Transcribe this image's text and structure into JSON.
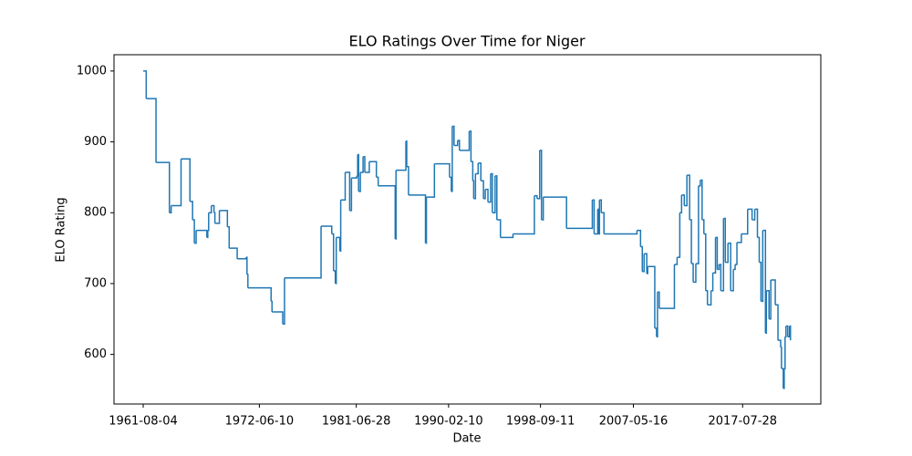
{
  "chart_data": {
    "type": "line",
    "drawstyle": "steps-post",
    "title": "ELO Ratings Over Time for Niger",
    "xlabel": "Date",
    "ylabel": "ELO Rating",
    "color": "#1f77b4",
    "x": [
      "1961-08-04",
      "1961-11-15",
      "1962-10-15",
      "1964-01-15",
      "1964-03-15",
      "1965-02-15",
      "1965-12-15",
      "1966-03-15",
      "1966-05-15",
      "1966-07-15",
      "1967-07-15",
      "1967-08-15",
      "1967-09-15",
      "1967-12-15",
      "1968-03-15",
      "1968-04-15",
      "1968-09-15",
      "1969-06-15",
      "1969-08-15",
      "1970-05-15",
      "1971-03-15",
      "1971-04-15",
      "1971-05-15",
      "1973-07-15",
      "1973-08-15",
      "1974-08-15",
      "1974-10-15",
      "1978-03-15",
      "1979-03-15",
      "1979-05-15",
      "1979-07-15",
      "1979-08-15",
      "1979-12-15",
      "1980-01-15",
      "1980-06-15",
      "1980-11-15",
      "1981-01-15",
      "1981-07-15",
      "1981-08-15",
      "1981-09-15",
      "1981-11-15",
      "1982-02-15",
      "1982-04-15",
      "1982-09-15",
      "1983-05-15",
      "1983-07-15",
      "1985-02-15",
      "1985-03-15",
      "1986-02-15",
      "1986-03-15",
      "1986-05-15",
      "1987-12-15",
      "1988-01-15",
      "1988-10-15",
      "1990-03-15",
      "1990-05-15",
      "1990-06-15",
      "1990-08-15",
      "1990-12-15",
      "1991-02-15",
      "1992-01-15",
      "1992-03-15",
      "1992-05-15",
      "1992-06-15",
      "1992-08-15",
      "1992-11-15",
      "1993-02-15",
      "1993-05-15",
      "1993-07-15",
      "1993-10-15",
      "1994-01-15",
      "1994-03-15",
      "1994-06-15",
      "1994-08-15",
      "1994-12-15",
      "1996-02-15",
      "1998-02-15",
      "1998-05-15",
      "1998-08-15",
      "1998-10-15",
      "1998-12-15",
      "2001-02-15",
      "2003-07-15",
      "2003-09-15",
      "2004-01-15",
      "2004-02-15",
      "2004-03-15",
      "2004-05-15",
      "2004-08-15",
      "2007-09-15",
      "2008-01-15",
      "2008-03-15",
      "2008-05-15",
      "2008-08-15",
      "2008-09-15",
      "2009-05-15",
      "2009-07-15",
      "2009-08-15",
      "2009-10-15",
      "2011-03-15",
      "2011-06-15",
      "2011-09-15",
      "2011-11-15",
      "2012-02-15",
      "2012-05-15",
      "2012-08-15",
      "2012-10-15",
      "2012-12-15",
      "2013-03-15",
      "2013-06-15",
      "2013-08-15",
      "2013-10-15",
      "2013-12-15",
      "2014-02-15",
      "2014-04-15",
      "2014-08-15",
      "2014-10-15",
      "2015-01-15",
      "2015-03-15",
      "2015-05-15",
      "2015-07-15",
      "2015-10-15",
      "2015-12-15",
      "2016-03-15",
      "2016-06-15",
      "2016-09-15",
      "2016-11-15",
      "2017-01-15",
      "2017-06-15",
      "2018-01-15",
      "2018-06-15",
      "2018-09-15",
      "2018-12-15",
      "2019-02-15",
      "2019-04-15",
      "2019-06-15",
      "2019-09-15",
      "2019-10-15",
      "2020-01-15",
      "2020-03-15",
      "2020-08-15",
      "2020-11-15",
      "2021-02-15",
      "2021-03-15",
      "2021-05-15",
      "2021-06-15",
      "2021-07-15",
      "2021-08-15",
      "2021-10-15",
      "2021-12-15",
      "2022-01-15"
    ],
    "values": [
      1000,
      961,
      871,
      800,
      810,
      876,
      816,
      790,
      757,
      775,
      765,
      775,
      800,
      810,
      800,
      785,
      803,
      780,
      750,
      735,
      737,
      713,
      694,
      675,
      660,
      643,
      708,
      781,
      770,
      718,
      700,
      765,
      746,
      818,
      857,
      803,
      849,
      852,
      882,
      830,
      857,
      879,
      857,
      872,
      850,
      838,
      763,
      860,
      901,
      865,
      825,
      757,
      822,
      869,
      850,
      830,
      922,
      895,
      902,
      888,
      915,
      872,
      845,
      820,
      855,
      870,
      845,
      820,
      833,
      815,
      855,
      800,
      852,
      790,
      765,
      770,
      824,
      820,
      888,
      790,
      822,
      778,
      818,
      770,
      805,
      770,
      818,
      800,
      770,
      775,
      752,
      717,
      742,
      714,
      724,
      637,
      625,
      688,
      665,
      727,
      737,
      800,
      825,
      810,
      853,
      790,
      728,
      702,
      728,
      838,
      846,
      790,
      770,
      690,
      670,
      690,
      715,
      765,
      720,
      727,
      690,
      792,
      730,
      757,
      690,
      720,
      727,
      758,
      770,
      805,
      790,
      805,
      765,
      730,
      675,
      775,
      630,
      690,
      650,
      705,
      670,
      620,
      610,
      580,
      552,
      580,
      625,
      640,
      625,
      640,
      620
    ],
    "xlim": [
      "1958-11-12",
      "2024-11-15"
    ],
    "xticks": [
      "1961-08-04",
      "1972-06-10",
      "1981-06-28",
      "1990-02-10",
      "1998-09-11",
      "2007-05-16",
      "2017-07-28"
    ],
    "ylim": [
      530,
      1023
    ],
    "yticks": [
      600,
      700,
      800,
      900,
      1000
    ]
  }
}
